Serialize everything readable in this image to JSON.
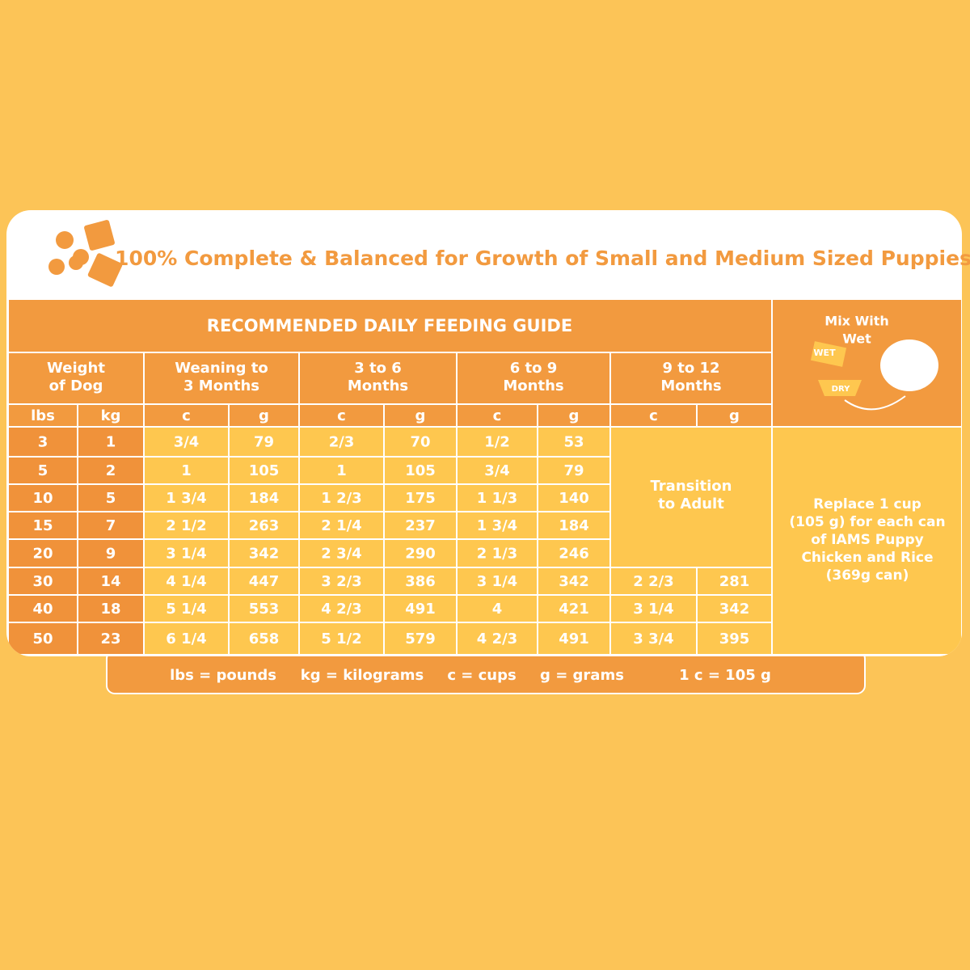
{
  "title": "100% Complete & Balanced for Growth of Small and Medium Sized Puppies",
  "table": {
    "heading": "RECOMMENDED DAILY FEEDING GUIDE",
    "groups": [
      [
        "Weight",
        "of Dog"
      ],
      [
        "Weaning to",
        "3 Months"
      ],
      [
        "3 to 6",
        "Months"
      ],
      [
        "6 to 9",
        "Months"
      ],
      [
        "9 to 12",
        "Months"
      ]
    ],
    "units": [
      "lbs",
      "kg",
      "c",
      "g",
      "c",
      "g",
      "c",
      "g",
      "c",
      "g"
    ],
    "rows": [
      [
        "3",
        "1",
        "3/4",
        "79",
        "2/3",
        "70",
        "1/2",
        "53"
      ],
      [
        "5",
        "2",
        "1",
        "105",
        "1",
        "105",
        "3/4",
        "79"
      ],
      [
        "10",
        "5",
        "1 3/4",
        "184",
        "1 2/3",
        "175",
        "1 1/3",
        "140"
      ],
      [
        "15",
        "7",
        "2 1/2",
        "263",
        "2 1/4",
        "237",
        "1 3/4",
        "184"
      ],
      [
        "20",
        "9",
        "3 1/4",
        "342",
        "2 3/4",
        "290",
        "2 1/3",
        "246"
      ],
      [
        "30",
        "14",
        "4 1/4",
        "447",
        "3 2/3",
        "386",
        "3 1/4",
        "342",
        "2 2/3",
        "281"
      ],
      [
        "40",
        "18",
        "5 1/4",
        "553",
        "4 2/3",
        "491",
        "4",
        "421",
        "3 1/4",
        "342"
      ],
      [
        "50",
        "23",
        "6 1/4",
        "658",
        "5 1/2",
        "579",
        "4 2/3",
        "491",
        "3 3/4",
        "395"
      ]
    ],
    "transition": [
      "Transition",
      "to Adult"
    ]
  },
  "mix": {
    "heading": [
      "Mix With",
      "Wet"
    ],
    "icon_labels": [
      "WET",
      "DRY"
    ],
    "text": [
      "Replace 1 cup",
      "(105 g) for each can",
      "of IAMS Puppy",
      "Chicken and Rice",
      "(369g can)"
    ]
  },
  "footer": [
    "lbs = pounds",
    "kg = kilograms",
    "c = cups",
    "g = grams",
    "1 c = 105 g"
  ]
}
